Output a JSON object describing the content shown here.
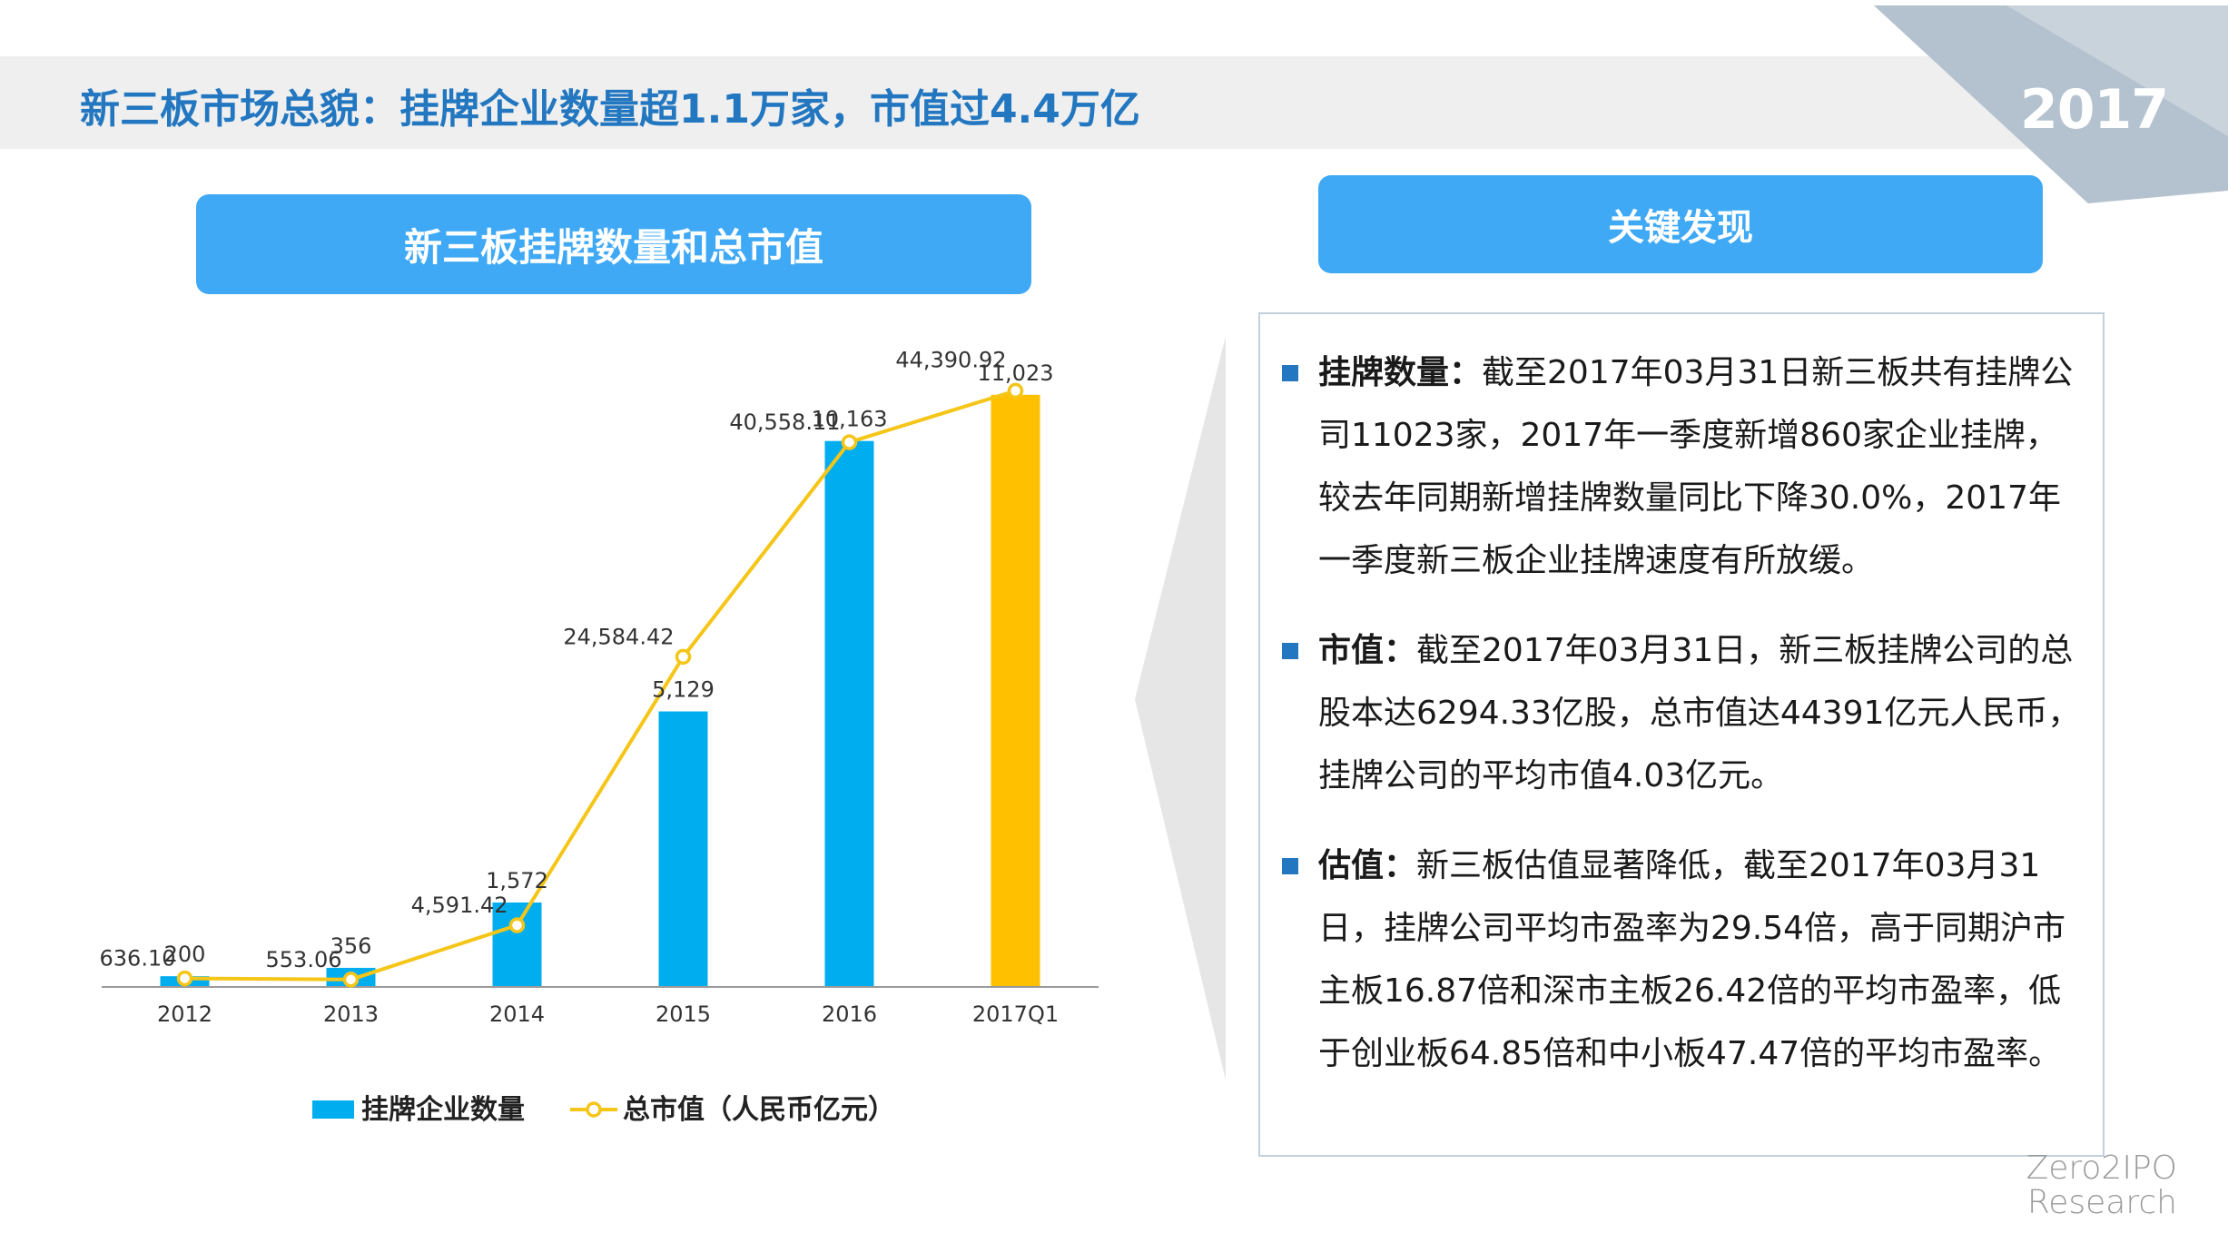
{
  "header": {
    "title": "新三板市场总貌：挂牌企业数量超1.1万家，市值过4.4万亿",
    "year": "2017"
  },
  "chart_section": {
    "title": "新三板挂牌数量和总市值"
  },
  "findings_section": {
    "title": "关键发现",
    "items": [
      {
        "label": "挂牌数量：",
        "text": "截至2017年03月31日新三板共有挂牌公司11023家，2017年一季度新增860家企业挂牌，较去年同期新增挂牌数量同比下降30.0%，2017年一季度新三板企业挂牌速度有所放缓。"
      },
      {
        "label": "市值：",
        "text": "截至2017年03月31日，新三板挂牌公司的总股本达6294.33亿股，总市值达44391亿元人民币，挂牌公司的平均市值4.03亿元。"
      },
      {
        "label": "估值：",
        "text": "新三板估值显著降低，截至2017年03月31日，挂牌公司平均市盈率为29.54倍，高于同期沪市主板16.87倍和深市主板26.42倍的平均市盈率，低于创业板64.85倍和中小板47.47倍的平均市盈率。"
      }
    ]
  },
  "chart_data": {
    "type": "bar",
    "categories": [
      "2012",
      "2013",
      "2014",
      "2015",
      "2016",
      "2017Q1"
    ],
    "series": [
      {
        "name": "挂牌企业数量",
        "type": "bar",
        "values": [
          200,
          356,
          1572,
          5129,
          10163,
          11023
        ],
        "labels": [
          "200",
          "356",
          "1,572",
          "5,129",
          "10,163",
          "11,023"
        ],
        "colors": [
          "#00aeef",
          "#00aeef",
          "#00aeef",
          "#00aeef",
          "#00aeef",
          "#ffc000"
        ]
      },
      {
        "name": "总市值（人民币亿元）",
        "type": "line",
        "values": [
          636.1,
          553.06,
          4591.42,
          24584.42,
          40558.11,
          44390.92
        ],
        "labels": [
          "636.10",
          "553.06",
          "4,591.42",
          "24,584.42",
          "40,558.11",
          "44,390.92"
        ],
        "color": "#f5c518"
      }
    ],
    "bar_axis_max": 12000,
    "line_axis_max": 48000,
    "legend_position": "bottom",
    "grid": false
  },
  "branding": {
    "line1": "Zero2IPO",
    "line2": "Research"
  },
  "colors": {
    "accent": "#2277c0",
    "header_blue": "#3fa9f5",
    "bar": "#00aeef",
    "bar_highlight": "#ffc000",
    "line": "#f5c518"
  }
}
